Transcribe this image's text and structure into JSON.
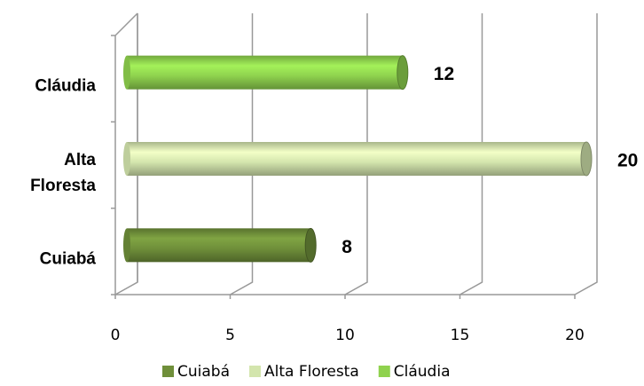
{
  "chart_data": {
    "type": "bar",
    "orientation": "horizontal",
    "style": "3d-cylinder",
    "categories": [
      "Cuiabá",
      "Alta Floresta",
      "Cláudia"
    ],
    "values": [
      8,
      20,
      12
    ],
    "colors": [
      "#6f8f3a",
      "#d3e5ad",
      "#8fd24e"
    ],
    "xlim": [
      0,
      20
    ],
    "xticks": [
      0,
      5,
      10,
      15,
      20
    ],
    "grid": true,
    "legend": "bottom"
  }
}
